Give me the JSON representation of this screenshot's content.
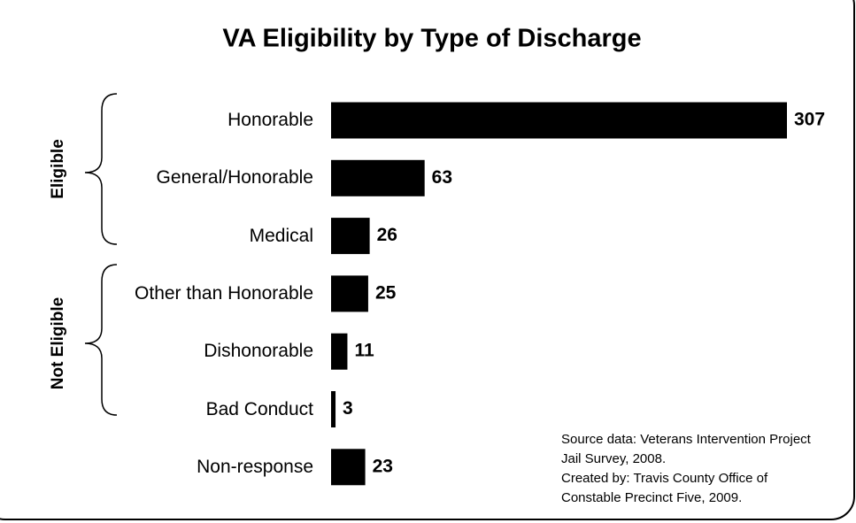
{
  "chart_data": {
    "type": "barh",
    "title": "VA Eligibility by Type of Discharge",
    "categories": [
      "Honorable",
      "General/Honorable",
      "Medical",
      "Other than Honorable",
      "Dishonorable",
      "Bad Conduct",
      "Non-response"
    ],
    "values": [
      307,
      63,
      26,
      25,
      11,
      3,
      23
    ],
    "color": "#000000",
    "groups": [
      {
        "label": "Eligible"
      },
      {
        "label": "Not Eligible"
      }
    ],
    "notes": [
      "Source data: Veterans Intervention Project Jail Survey, 2008.",
      "Created by: Travis County Office of Constable Precinct Five, 2009."
    ]
  }
}
